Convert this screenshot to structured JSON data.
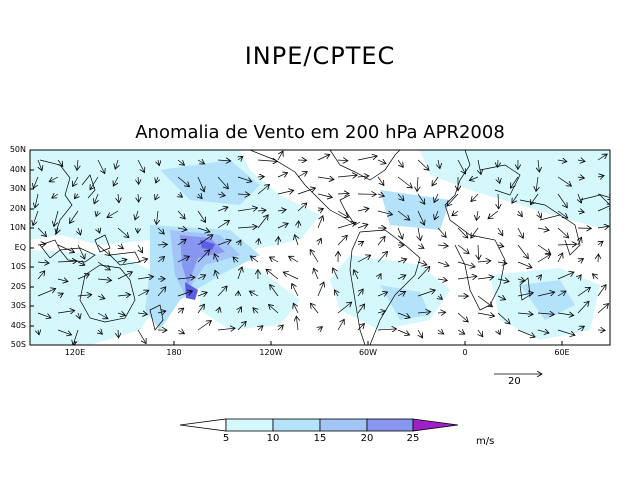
{
  "header": {
    "organization": "INPE/CPTEC"
  },
  "map": {
    "title": "Anomalia de Vento em 200 hPa APR2008",
    "lat_labels": [
      "50N",
      "40N",
      "30N",
      "20N",
      "10N",
      "EQ",
      "10S",
      "20S",
      "30S",
      "40S",
      "50S"
    ],
    "lon_labels": [
      "120E",
      "180",
      "120W",
      "60W",
      "0",
      "60E"
    ],
    "shading_colors": [
      "#d4f8fc",
      "#b4e2fa",
      "#a3c4f6",
      "#8896f0",
      "#5c5ce6",
      "#a020c8"
    ]
  },
  "vector_scale": {
    "value": "20"
  },
  "colorbar": {
    "ticks": [
      "5",
      "10",
      "15",
      "20",
      "25"
    ],
    "units": "m/s",
    "colors": [
      "#ffffff",
      "#d4f8fc",
      "#b4e2fa",
      "#a3c4f6",
      "#8896f0",
      "#5c5ce6",
      "#a020c8"
    ]
  }
}
